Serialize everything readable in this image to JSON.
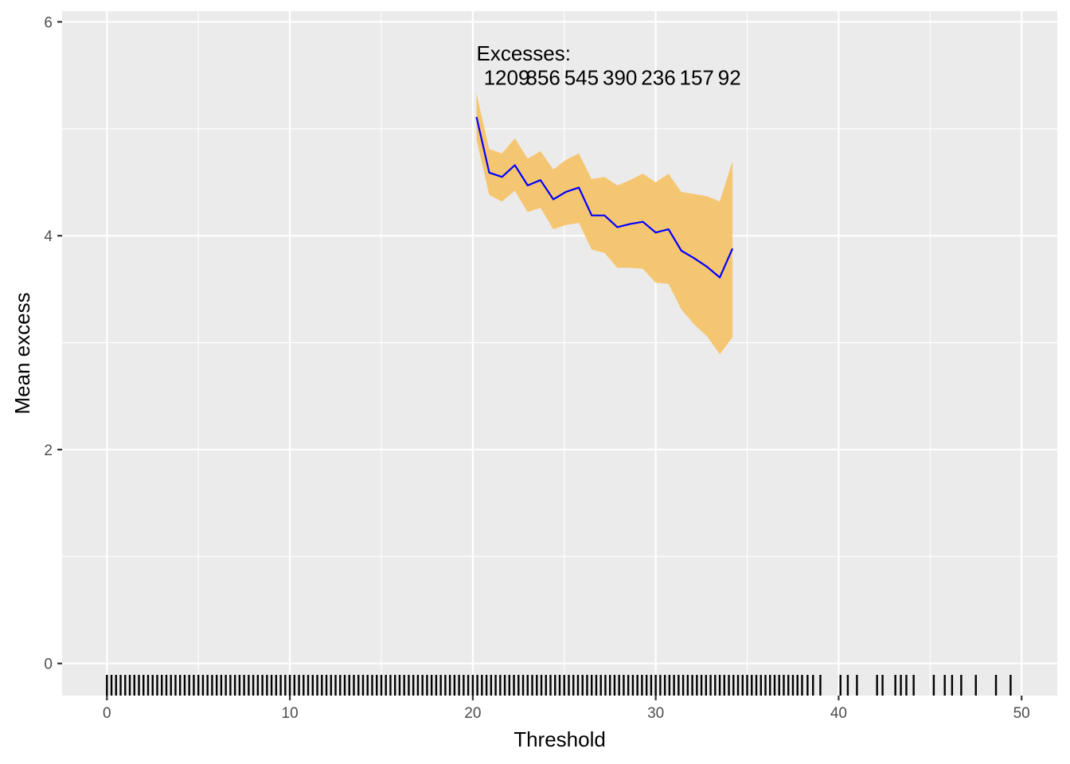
{
  "chart_data": {
    "type": "line",
    "xlabel": "Threshold",
    "ylabel": "Mean excess",
    "xlim": [
      -2.45,
      51.95
    ],
    "ylim": [
      -0.3,
      6.1
    ],
    "x_ticks": [
      0,
      10,
      20,
      30,
      40,
      50
    ],
    "x_tick_labels": [
      "0",
      "10",
      "20",
      "30",
      "40",
      "50"
    ],
    "y_ticks": [
      0,
      2,
      4,
      6
    ],
    "y_tick_labels": [
      "0",
      "2",
      "4",
      "6"
    ],
    "grid": true,
    "series": [
      {
        "type": "line",
        "color": "#0000ff",
        "x": [
          20.2,
          20.9,
          21.6,
          22.3,
          23.0,
          23.7,
          24.4,
          25.1,
          25.8,
          26.5,
          27.2,
          27.9,
          28.6,
          29.3,
          30.0,
          30.7,
          31.4,
          32.1,
          32.8,
          33.5,
          34.2
        ],
        "y": [
          5.11,
          4.59,
          4.55,
          4.66,
          4.47,
          4.52,
          4.34,
          4.41,
          4.45,
          4.19,
          4.19,
          4.08,
          4.11,
          4.13,
          4.03,
          4.06,
          3.86,
          3.79,
          3.71,
          3.61,
          3.88
        ]
      },
      {
        "type": "band",
        "color": "#f5c46a",
        "x": [
          20.2,
          20.9,
          21.6,
          22.3,
          23.0,
          23.7,
          24.4,
          25.1,
          25.8,
          26.5,
          27.2,
          27.9,
          28.6,
          29.3,
          30.0,
          30.7,
          31.4,
          32.1,
          32.8,
          33.5,
          34.2
        ],
        "lower": [
          4.9,
          4.38,
          4.32,
          4.42,
          4.22,
          4.26,
          4.06,
          4.1,
          4.12,
          3.87,
          3.84,
          3.7,
          3.7,
          3.69,
          3.56,
          3.55,
          3.31,
          3.17,
          3.06,
          2.89,
          3.05
        ],
        "upper": [
          5.33,
          4.81,
          4.77,
          4.91,
          4.72,
          4.79,
          4.62,
          4.71,
          4.77,
          4.53,
          4.55,
          4.47,
          4.52,
          4.58,
          4.5,
          4.58,
          4.41,
          4.39,
          4.37,
          4.32,
          4.7
        ]
      }
    ],
    "annotations": [
      {
        "text": "Excesses:",
        "x": 20.2,
        "y": 5.64
      },
      {
        "text": "1209",
        "x": 20.6,
        "y": 5.41
      },
      {
        "text": "856",
        "x": 22.9,
        "y": 5.41
      },
      {
        "text": "545",
        "x": 25.0,
        "y": 5.41
      },
      {
        "text": "390",
        "x": 27.1,
        "y": 5.41
      },
      {
        "text": "236",
        "x": 29.2,
        "y": 5.41
      },
      {
        "text": "157",
        "x": 31.3,
        "y": 5.41
      },
      {
        "text": "92",
        "x": 33.4,
        "y": 5.41
      }
    ],
    "rug_x": [
      0.0,
      0.25,
      0.5,
      0.75,
      1.0,
      1.25,
      1.5,
      1.75,
      2.0,
      2.25,
      2.5,
      2.75,
      3.0,
      3.25,
      3.5,
      3.75,
      4.0,
      4.25,
      4.5,
      4.75,
      5.0,
      5.25,
      5.5,
      5.75,
      6.0,
      6.25,
      6.5,
      6.75,
      7.0,
      7.25,
      7.5,
      7.75,
      8.0,
      8.25,
      8.5,
      8.75,
      9.0,
      9.25,
      9.5,
      9.75,
      10.0,
      10.25,
      10.5,
      10.75,
      11.0,
      11.25,
      11.5,
      11.75,
      12.0,
      12.25,
      12.5,
      12.75,
      13.0,
      13.25,
      13.5,
      13.75,
      14.0,
      14.25,
      14.5,
      14.75,
      15.0,
      15.25,
      15.5,
      15.75,
      16.0,
      16.25,
      16.5,
      16.75,
      17.0,
      17.25,
      17.5,
      17.75,
      18.0,
      18.25,
      18.5,
      18.75,
      19.0,
      19.25,
      19.5,
      19.75,
      20.0,
      20.25,
      20.5,
      20.75,
      21.0,
      21.25,
      21.5,
      21.75,
      22.0,
      22.25,
      22.5,
      22.75,
      23.0,
      23.25,
      23.5,
      23.75,
      24.0,
      24.25,
      24.5,
      24.75,
      25.0,
      25.25,
      25.5,
      25.75,
      26.0,
      26.25,
      26.5,
      26.75,
      27.0,
      27.25,
      27.5,
      27.75,
      28.0,
      28.25,
      28.5,
      28.75,
      29.0,
      29.25,
      29.5,
      29.75,
      30.0,
      30.25,
      30.5,
      30.75,
      31.0,
      31.25,
      31.5,
      31.75,
      32.0,
      32.25,
      32.5,
      32.75,
      33.0,
      33.25,
      33.5,
      33.75,
      34.0,
      34.25,
      34.5,
      34.75,
      35.0,
      35.25,
      35.5,
      35.75,
      36.0,
      36.25,
      36.5,
      36.75,
      37.0,
      37.25,
      37.5,
      37.75,
      38.0,
      38.3,
      38.6,
      39.0,
      40.1,
      40.5,
      41.0,
      42.1,
      42.4,
      43.1,
      43.4,
      43.7,
      44.1,
      45.2,
      45.8,
      46.2,
      46.7,
      47.5,
      48.6,
      49.4
    ]
  }
}
